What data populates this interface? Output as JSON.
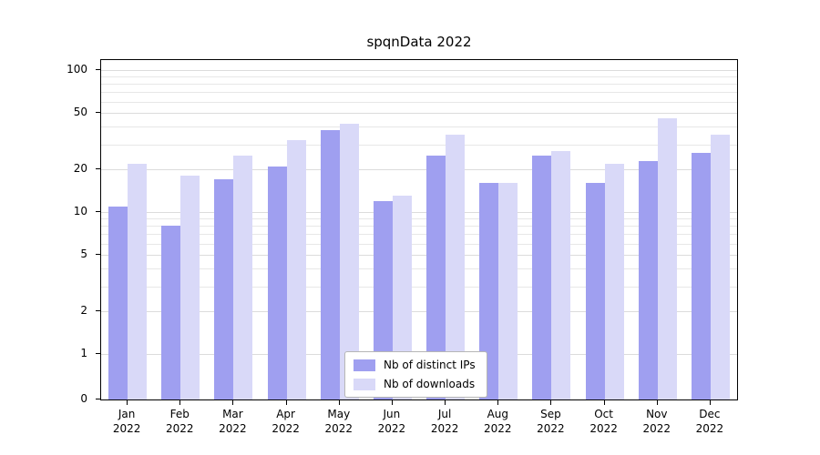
{
  "chart_data": {
    "type": "bar",
    "title": "spqnData 2022",
    "yscale": "symlog",
    "yticks": [
      0,
      1,
      2,
      5,
      10,
      20,
      50,
      100
    ],
    "ylim": [
      0,
      120
    ],
    "grid": "horizontal-log-minor",
    "legend_position": "lower center",
    "x_year": "2022",
    "categories": [
      "Jan",
      "Feb",
      "Mar",
      "Apr",
      "May",
      "Jun",
      "Jul",
      "Aug",
      "Sep",
      "Oct",
      "Nov",
      "Dec"
    ],
    "series": [
      {
        "name": "Nb of distinct IPs",
        "color": "#9f9ff0",
        "values": [
          11,
          8,
          17,
          21,
          38,
          12,
          25,
          16,
          25,
          16,
          23,
          26
        ]
      },
      {
        "name": "Nb of downloads",
        "color": "#d9d9f8",
        "values": [
          22,
          18,
          25,
          32,
          42,
          13,
          35,
          16,
          27,
          22,
          46,
          35
        ]
      }
    ]
  }
}
